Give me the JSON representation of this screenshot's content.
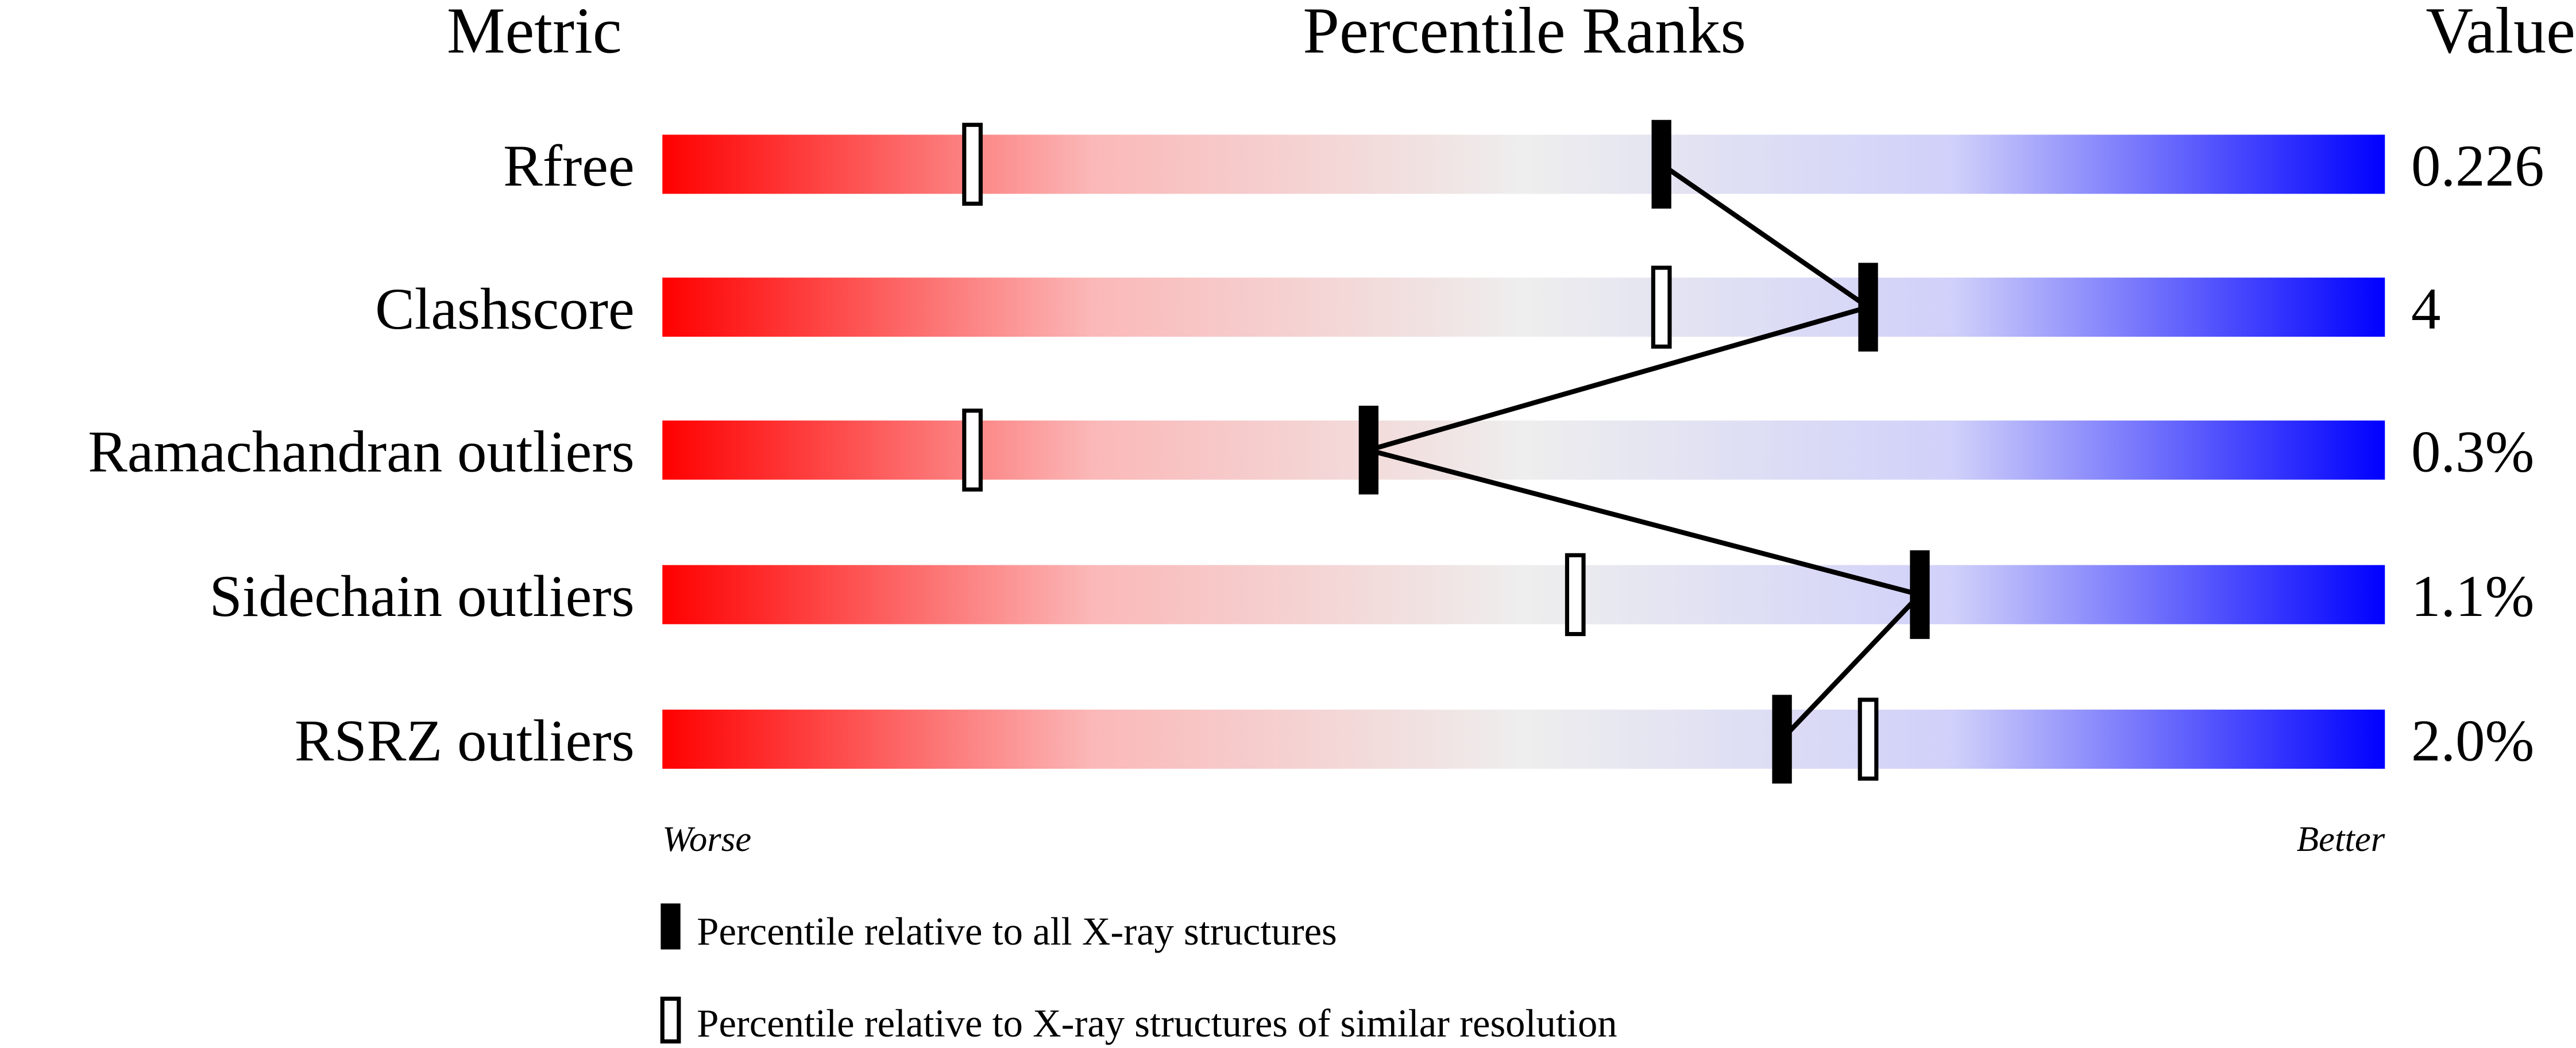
{
  "chart_data": {
    "type": "percentile-bar",
    "headers": {
      "metric": "Metric",
      "ranks": "Percentile Ranks",
      "value": "Value"
    },
    "xlim": [
      0,
      100
    ],
    "colors": {
      "worse": "#ff0000",
      "middle": "#eeeeee",
      "better": "#0000ff",
      "marker": "#000000"
    },
    "rows": [
      {
        "metric": "Rfree",
        "value": "0.226",
        "all": 58,
        "similar": 18
      },
      {
        "metric": "Clashscore",
        "value": "4",
        "all": 70,
        "similar": 58
      },
      {
        "metric": "Ramachandran outliers",
        "value": "0.3%",
        "all": 41,
        "similar": 18
      },
      {
        "metric": "Sidechain outliers",
        "value": "1.1%",
        "all": 73,
        "similar": 53
      },
      {
        "metric": "RSRZ outliers",
        "value": "2.0%",
        "all": 65,
        "similar": 70
      }
    ],
    "axis": {
      "left": "Worse",
      "right": "Better"
    },
    "legend": [
      {
        "marker": "filled",
        "label": "Percentile relative to all X-ray structures"
      },
      {
        "marker": "open",
        "label": "Percentile relative to X-ray structures of similar resolution"
      }
    ]
  }
}
